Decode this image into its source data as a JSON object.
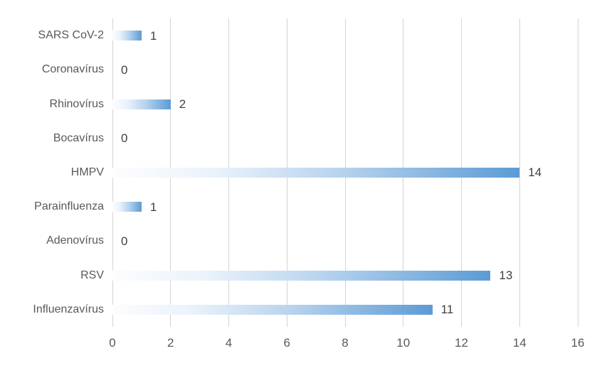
{
  "chart_data": {
    "type": "bar",
    "orientation": "horizontal",
    "title": "",
    "xlabel": "",
    "ylabel": "",
    "categories": [
      "SARS CoV-2",
      "Coronavírus",
      "Rhinovírus",
      "Bocavírus",
      "HMPV",
      "Parainfluenza",
      "Adenovírus",
      "RSV",
      "Influenzavírus"
    ],
    "values": [
      1,
      0,
      2,
      0,
      14,
      1,
      0,
      13,
      11
    ],
    "data_labels": [
      "1",
      "0",
      "2",
      "0",
      "14",
      "1",
      "0",
      "13",
      "11"
    ],
    "xlim": [
      0,
      16
    ],
    "x_ticks": [
      0,
      2,
      4,
      6,
      8,
      10,
      12,
      14,
      16
    ],
    "x_tick_labels": [
      "0",
      "2",
      "4",
      "6",
      "8",
      "10",
      "12",
      "14",
      "16"
    ],
    "grid": "vertical",
    "legend": "none",
    "colors": {
      "bar_gradient_start": "#fdfdfe",
      "bar_gradient_mid": "#b9d4ee",
      "bar_gradient_end": "#5b9bd5",
      "gridline": "#d4d4d4",
      "category_label": "#595959",
      "axis_tick_label": "#595959",
      "data_label": "#404040",
      "background": "#ffffff"
    }
  }
}
